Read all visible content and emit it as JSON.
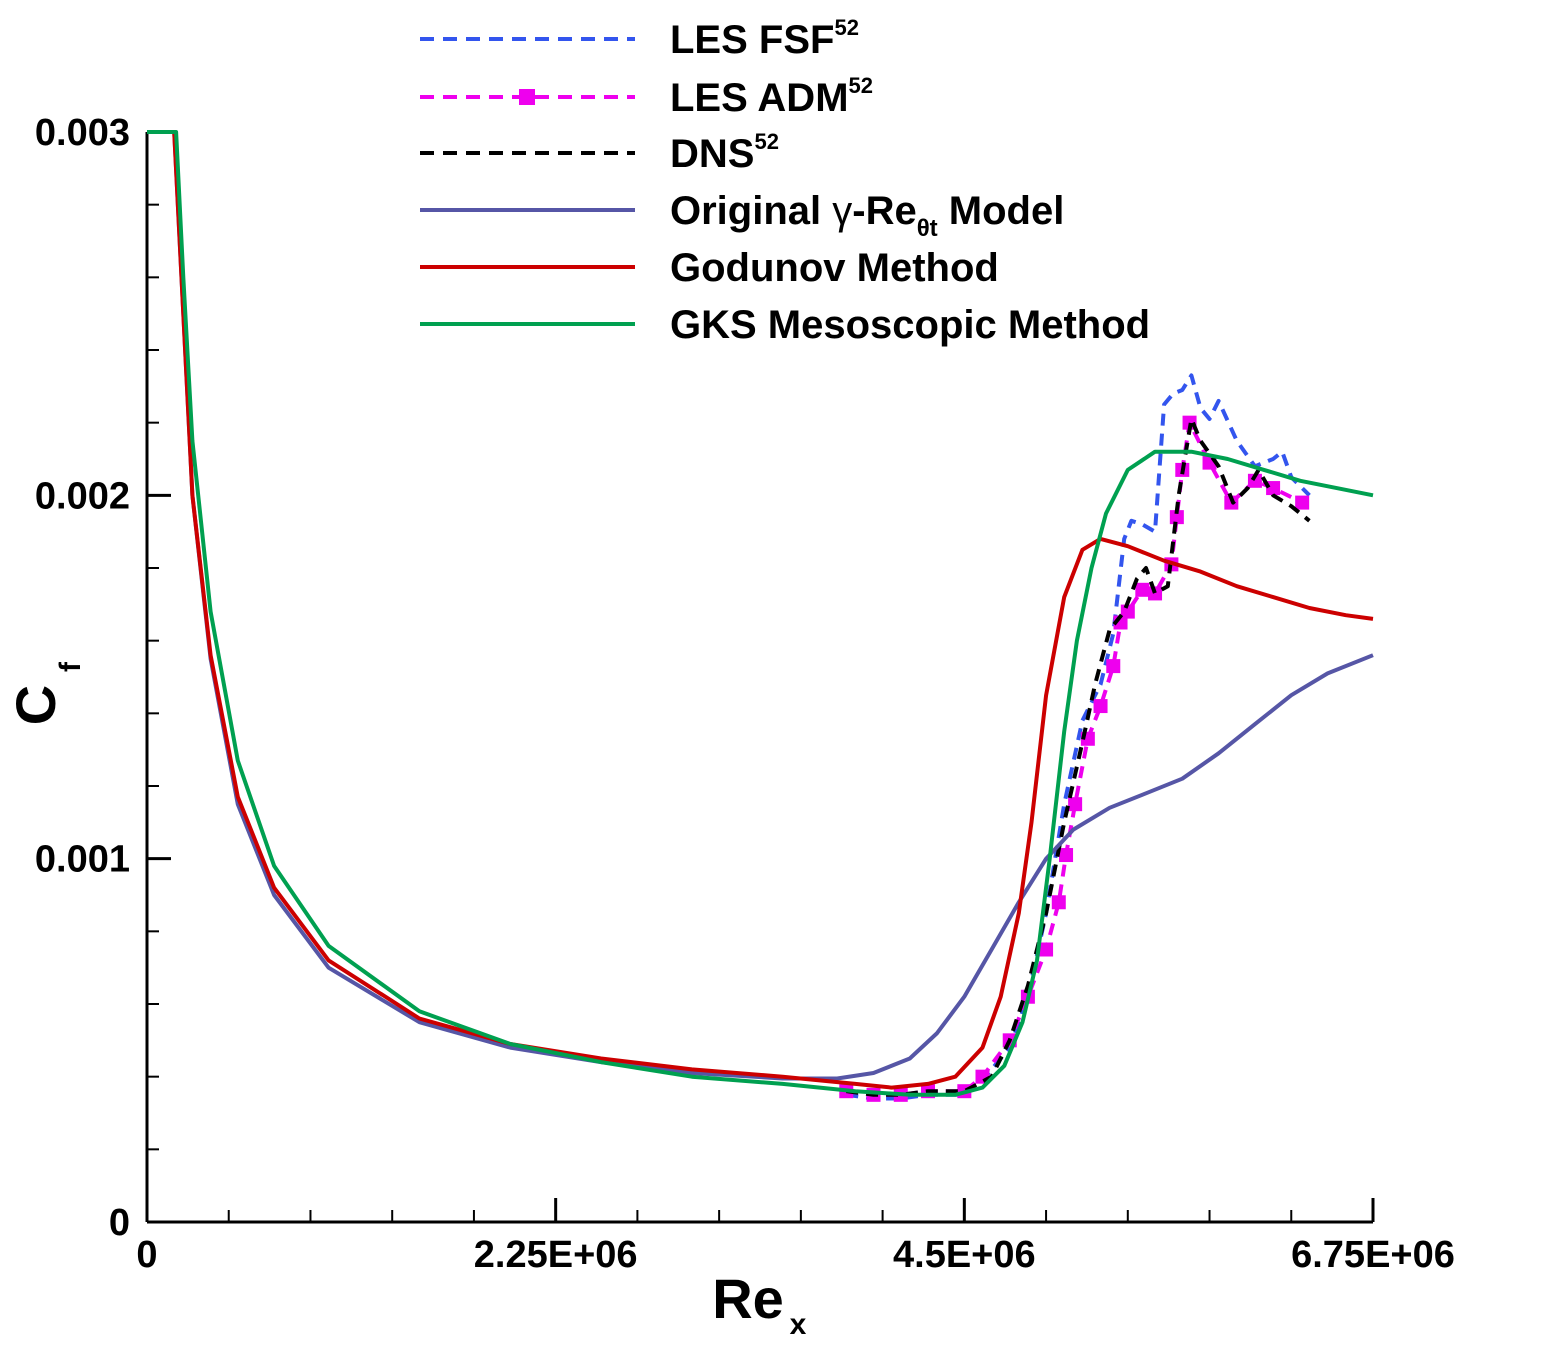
{
  "chart_data": {
    "type": "line",
    "xlabel": {
      "main": "Re",
      "sub": "x"
    },
    "ylabel": {
      "main": "C",
      "sub": "f"
    },
    "xlim": [
      0,
      6750000
    ],
    "ylim": [
      0,
      0.003
    ],
    "x_ticks": [
      {
        "value": 0,
        "label": "0"
      },
      {
        "value": 2250000,
        "label": "2.25E+06"
      },
      {
        "value": 4500000,
        "label": "4.5E+06"
      },
      {
        "value": 6750000,
        "label": "6.75E+06"
      }
    ],
    "y_ticks": [
      {
        "value": 0,
        "label": "0"
      },
      {
        "value": 0.001,
        "label": "0.001"
      },
      {
        "value": 0.002,
        "label": "0.002"
      },
      {
        "value": 0.003,
        "label": "0.003"
      }
    ],
    "x_minor_step": 450000,
    "y_minor_step": 0.0002,
    "legend_position": "top-center",
    "series": [
      {
        "key": "les_fsf",
        "label": "LES FSF",
        "sup": "52",
        "color": "#3355ee",
        "style": "dashed",
        "x": [
          3850000,
          4000000,
          4150000,
          4300000,
          4500000,
          4600000,
          4750000,
          4850000,
          4950000,
          5050000,
          5150000,
          5250000,
          5320000,
          5380000,
          5420000,
          5480000,
          5550000,
          5600000,
          5650000,
          5700000,
          5750000,
          5800000,
          5850000,
          5900000,
          6000000,
          6100000,
          6200000,
          6250000,
          6300000,
          6400000
        ],
        "y": [
          0.00035,
          0.00034,
          0.00034,
          0.00035,
          0.00035,
          0.00039,
          0.00048,
          0.00062,
          0.00085,
          0.00115,
          0.00138,
          0.00148,
          0.00162,
          0.00188,
          0.00193,
          0.00192,
          0.0019,
          0.00225,
          0.00228,
          0.00229,
          0.00233,
          0.00224,
          0.00221,
          0.00226,
          0.00215,
          0.00208,
          0.0021,
          0.00212,
          0.00205,
          0.002
        ]
      },
      {
        "key": "les_adm",
        "label": "LES ADM",
        "sup": "52",
        "color": "#ee00ee",
        "style": "dashed-square",
        "x": [
          3850000,
          4000000,
          4150000,
          4300000,
          4500000,
          4600000,
          4750000,
          4850000,
          4950000,
          5020000,
          5060000,
          5110000,
          5180000,
          5250000,
          5320000,
          5360000,
          5400000,
          5480000,
          5550000,
          5640000,
          5670000,
          5700000,
          5740000,
          5850000,
          5970000,
          6100000,
          6200000,
          6360000
        ],
        "y": [
          0.00036,
          0.00035,
          0.00035,
          0.00036,
          0.00036,
          0.0004,
          0.0005,
          0.00062,
          0.00075,
          0.00088,
          0.00101,
          0.00115,
          0.00133,
          0.00142,
          0.00153,
          0.00165,
          0.00168,
          0.00174,
          0.00173,
          0.00181,
          0.00194,
          0.00207,
          0.0022,
          0.00209,
          0.00198,
          0.00204,
          0.00202,
          0.00198
        ]
      },
      {
        "key": "dns",
        "label": "DNS",
        "sup": "52",
        "color": "#000000",
        "style": "dashed",
        "x": [
          3850000,
          4000000,
          4150000,
          4300000,
          4500000,
          4650000,
          4750000,
          4850000,
          4950000,
          5050000,
          5150000,
          5220000,
          5300000,
          5380000,
          5450000,
          5500000,
          5550000,
          5620000,
          5680000,
          5720000,
          5750000,
          5800000,
          5900000,
          5980000,
          6060000,
          6120000,
          6200000,
          6300000,
          6400000
        ],
        "y": [
          0.00036,
          0.00035,
          0.00035,
          0.00036,
          0.00036,
          0.0004,
          0.0005,
          0.00065,
          0.00085,
          0.0011,
          0.00132,
          0.00148,
          0.00163,
          0.00168,
          0.00177,
          0.0018,
          0.00173,
          0.00175,
          0.002,
          0.00212,
          0.00221,
          0.00215,
          0.00208,
          0.00198,
          0.00202,
          0.00207,
          0.002,
          0.00197,
          0.00193
        ]
      },
      {
        "key": "original",
        "label_pre": "Original ",
        "label_greek": "γ",
        "label_mid": "-Re",
        "label_sub": "θt",
        "label_post": " Model",
        "color": "#5656a6",
        "style": "solid",
        "x": [
          0,
          150000,
          200000,
          250000,
          350000,
          500000,
          700000,
          1000000,
          1500000,
          2000000,
          2500000,
          3000000,
          3500000,
          3800000,
          4000000,
          4200000,
          4350000,
          4500000,
          4650000,
          4800000,
          4950000,
          5100000,
          5300000,
          5500000,
          5700000,
          5900000,
          6100000,
          6300000,
          6500000,
          6750000
        ],
        "y": [
          0.003,
          0.003,
          0.0025,
          0.002,
          0.00155,
          0.00115,
          0.0009,
          0.0007,
          0.00055,
          0.00048,
          0.00044,
          0.00041,
          0.000395,
          0.000395,
          0.00041,
          0.00045,
          0.00052,
          0.00062,
          0.00075,
          0.00088,
          0.001,
          0.00108,
          0.00114,
          0.00118,
          0.00122,
          0.00129,
          0.00137,
          0.00145,
          0.00151,
          0.00156
        ]
      },
      {
        "key": "godunov",
        "label": "Godunov Method",
        "color": "#cc0000",
        "style": "solid",
        "x": [
          0,
          150000,
          200000,
          250000,
          350000,
          500000,
          700000,
          1000000,
          1500000,
          2000000,
          2500000,
          3000000,
          3500000,
          3900000,
          4100000,
          4300000,
          4450000,
          4600000,
          4700000,
          4800000,
          4870000,
          4950000,
          5050000,
          5150000,
          5250000,
          5400000,
          5600000,
          5800000,
          6000000,
          6200000,
          6400000,
          6600000,
          6750000
        ],
        "y": [
          0.003,
          0.003,
          0.0025,
          0.002,
          0.00156,
          0.00117,
          0.00092,
          0.00072,
          0.00056,
          0.00049,
          0.00045,
          0.00042,
          0.0004,
          0.00038,
          0.00037,
          0.00038,
          0.0004,
          0.00048,
          0.00062,
          0.00085,
          0.0011,
          0.00145,
          0.00172,
          0.00185,
          0.00188,
          0.00186,
          0.00182,
          0.00179,
          0.00175,
          0.00172,
          0.00169,
          0.00167,
          0.00166
        ]
      },
      {
        "key": "gks",
        "label": "GKS Mesoscopic Method",
        "color": "#00a050",
        "style": "solid",
        "x": [
          0,
          160000,
          200000,
          250000,
          350000,
          500000,
          700000,
          1000000,
          1500000,
          2000000,
          2500000,
          3000000,
          3500000,
          3900000,
          4200000,
          4450000,
          4600000,
          4720000,
          4820000,
          4900000,
          4970000,
          5050000,
          5120000,
          5200000,
          5280000,
          5400000,
          5550000,
          5750000,
          5950000,
          6150000,
          6350000,
          6550000,
          6750000
        ],
        "y": [
          0.003,
          0.003,
          0.0026,
          0.00215,
          0.00168,
          0.00127,
          0.00098,
          0.00076,
          0.00058,
          0.00049,
          0.00044,
          0.0004,
          0.00038,
          0.00036,
          0.00035,
          0.00035,
          0.00037,
          0.00043,
          0.00055,
          0.00072,
          0.001,
          0.00135,
          0.0016,
          0.0018,
          0.00195,
          0.00207,
          0.00212,
          0.00212,
          0.0021,
          0.00207,
          0.00204,
          0.00202,
          0.002
        ]
      }
    ]
  }
}
